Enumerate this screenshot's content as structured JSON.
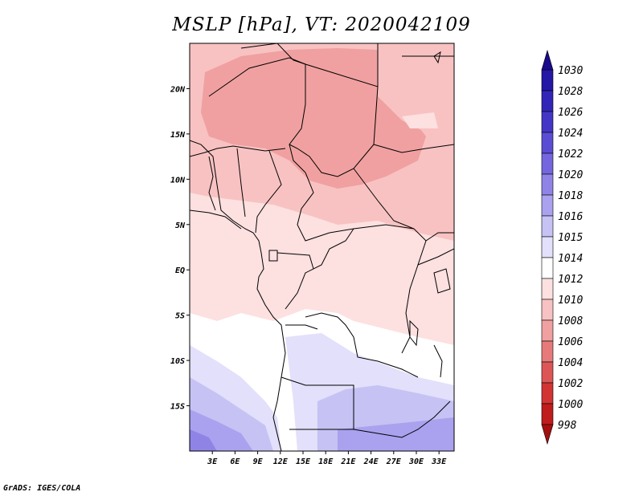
{
  "title": "MSLP [hPa], VT: 2020042109",
  "credit": "GrADS: IGES/COLA",
  "map": {
    "lon_range": [
      0,
      35
    ],
    "lat_range": [
      -20,
      25
    ],
    "lat_ticks": [
      "20N",
      "15N",
      "10N",
      "5N",
      "EQ",
      "5S",
      "10S",
      "15S"
    ],
    "lat_values": [
      20,
      15,
      10,
      5,
      0,
      -5,
      -10,
      -15
    ],
    "lon_ticks": [
      "3E",
      "6E",
      "9E",
      "12E",
      "15E",
      "18E",
      "21E",
      "24E",
      "27E",
      "30E",
      "33E"
    ],
    "lon_values": [
      3,
      6,
      9,
      12,
      15,
      18,
      21,
      24,
      27,
      30,
      33
    ]
  },
  "colorbar": {
    "levels": [
      "1030",
      "1028",
      "1026",
      "1024",
      "1022",
      "1020",
      "1018",
      "1016",
      "1015",
      "1014",
      "1012",
      "1010",
      "1008",
      "1006",
      "1004",
      "1002",
      "1000",
      "998"
    ],
    "colors": [
      "#1a0a8c",
      "#2418a6",
      "#3226b8",
      "#4336c6",
      "#5a4dd4",
      "#7466de",
      "#8f84e6",
      "#aaa2ee",
      "#c6c2f4",
      "#e2e0fa",
      "#ffffff",
      "#fde0e0",
      "#f8c2c2",
      "#f0a0a0",
      "#e67a7a",
      "#dc5656",
      "#d23434",
      "#c01c1c",
      "#a50f0f"
    ]
  }
}
